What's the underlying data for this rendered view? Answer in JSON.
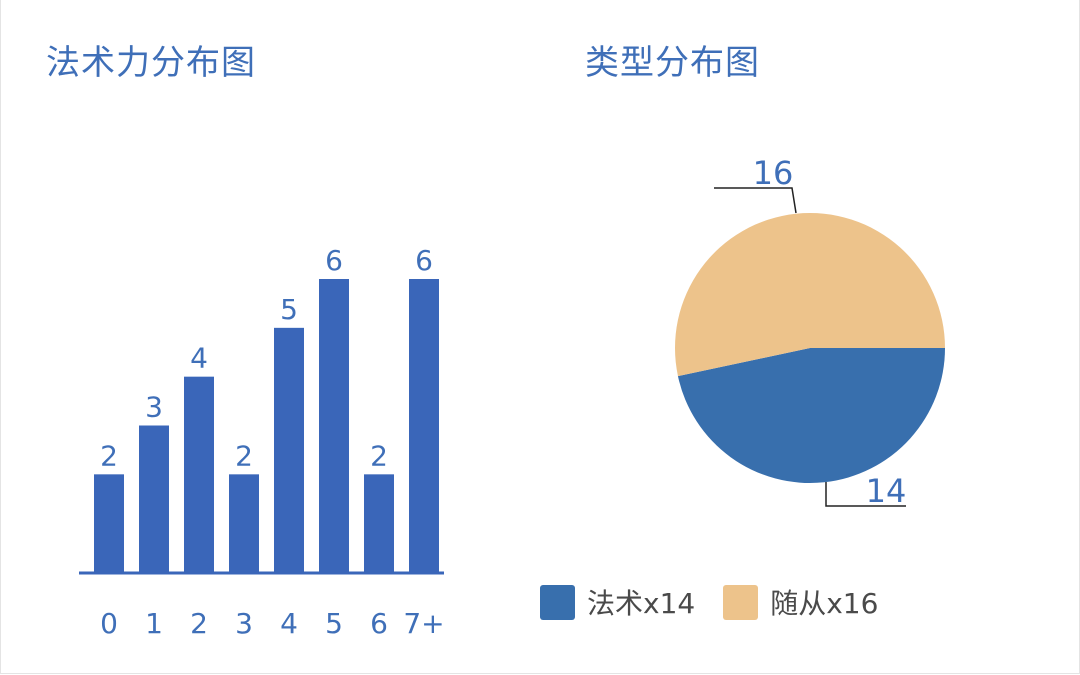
{
  "charts": {
    "bar": {
      "title": "法术力分布图"
    },
    "pie": {
      "title": "类型分布图"
    }
  },
  "chart_data": [
    {
      "type": "bar",
      "title": "法术力分布图",
      "categories": [
        "0",
        "1",
        "2",
        "3",
        "4",
        "5",
        "6",
        "7+"
      ],
      "values": [
        2,
        3,
        4,
        2,
        5,
        6,
        2,
        6
      ],
      "ylim": [
        0,
        6
      ],
      "grid": false,
      "color": "#3a66b9"
    },
    {
      "type": "pie",
      "title": "类型分布图",
      "slices": [
        {
          "label": "法术x14",
          "value": 14,
          "color": "#386fad"
        },
        {
          "label": "随从x16",
          "value": 16,
          "color": "#edc38b"
        }
      ],
      "legend": "bottom"
    }
  ]
}
